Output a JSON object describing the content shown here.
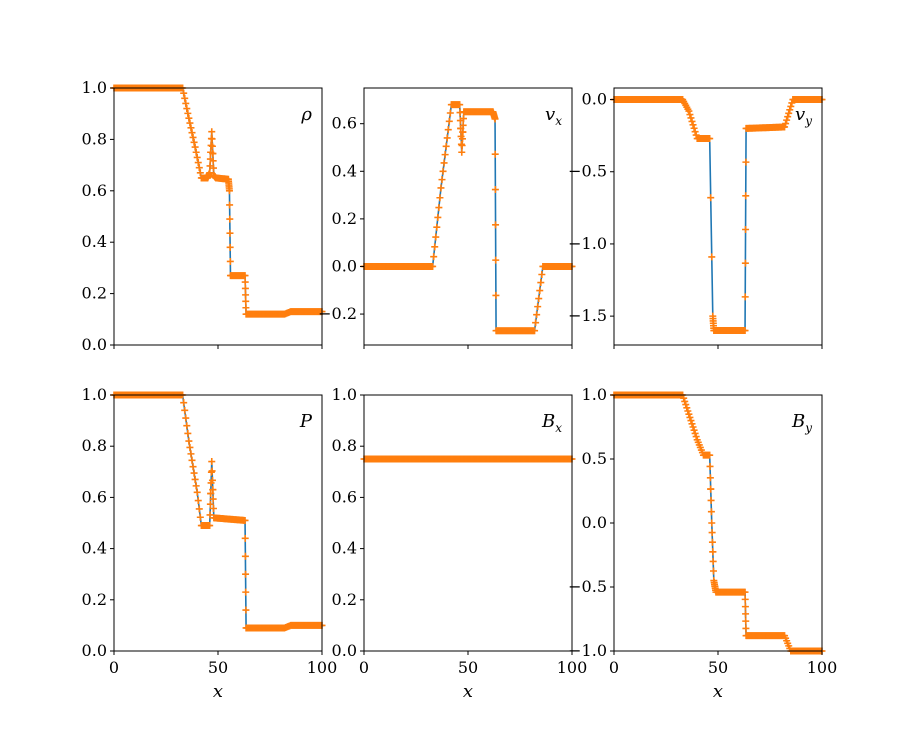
{
  "colors": {
    "line": "#1f77b4",
    "marker": "#ff7f0e",
    "axes": "#000000",
    "background": "#ffffff"
  },
  "chart_data": [
    {
      "type": "line",
      "panel_label": "ρ",
      "label_main": "ρ",
      "label_sub": "",
      "xlabel": "",
      "xlim": [
        0,
        100
      ],
      "ylim": [
        0.0,
        1.0
      ],
      "xticks": [
        0,
        50,
        100
      ],
      "yticks": [
        0.0,
        0.2,
        0.4,
        0.6,
        0.8,
        1.0
      ],
      "ytick_labels": [
        "0.0",
        "0.2",
        "0.4",
        "0.6",
        "0.8",
        "1.0"
      ],
      "show_xtick_labels": false,
      "series": [
        {
          "values": [
            [
              0,
              1.0
            ],
            [
              33,
              1.0
            ],
            [
              35,
              0.92
            ],
            [
              39,
              0.77
            ],
            [
              42,
              0.65
            ],
            [
              45,
              0.65
            ],
            [
              46,
              0.67
            ],
            [
              47,
              0.83
            ],
            [
              48,
              0.66
            ],
            [
              49,
              0.65
            ],
            [
              55,
              0.645
            ],
            [
              55.5,
              0.6
            ],
            [
              56,
              0.27
            ],
            [
              63,
              0.27
            ],
            [
              63.5,
              0.12
            ],
            [
              82,
              0.12
            ],
            [
              85,
              0.13
            ],
            [
              100,
              0.13
            ]
          ]
        }
      ]
    },
    {
      "type": "line",
      "panel_label": "v_x",
      "label_main": "v",
      "label_sub": "x",
      "xlabel": "",
      "xlim": [
        0,
        100
      ],
      "ylim": [
        -0.33,
        0.75
      ],
      "xticks": [
        0,
        50,
        100
      ],
      "yticks": [
        -0.2,
        0.0,
        0.2,
        0.4,
        0.6
      ],
      "ytick_labels": [
        "−0.2",
        "0.0",
        "0.2",
        "0.4",
        "0.6"
      ],
      "show_xtick_labels": false,
      "series": [
        {
          "values": [
            [
              0,
              0.0
            ],
            [
              33,
              0.0
            ],
            [
              37,
              0.33
            ],
            [
              42,
              0.68
            ],
            [
              46,
              0.68
            ],
            [
              47,
              0.48
            ],
            [
              48,
              0.65
            ],
            [
              62,
              0.65
            ],
            [
              63,
              0.62
            ],
            [
              63.5,
              -0.27
            ],
            [
              82,
              -0.27
            ],
            [
              86,
              0.0
            ],
            [
              100,
              0.0
            ]
          ]
        }
      ]
    },
    {
      "type": "line",
      "panel_label": "v_y",
      "label_main": "v",
      "label_sub": "y",
      "xlabel": "",
      "xlim": [
        0,
        100
      ],
      "ylim": [
        -1.7,
        0.08
      ],
      "xticks": [
        0,
        50,
        100
      ],
      "yticks": [
        -1.5,
        -1.0,
        -0.5,
        0.0
      ],
      "ytick_labels": [
        "−1.5",
        "−1.0",
        "−0.5",
        "0.0"
      ],
      "show_xtick_labels": false,
      "series": [
        {
          "values": [
            [
              0,
              0.0
            ],
            [
              33,
              0.0
            ],
            [
              36,
              -0.08
            ],
            [
              40,
              -0.27
            ],
            [
              46,
              -0.27
            ],
            [
              47.5,
              -1.5
            ],
            [
              48,
              -1.6
            ],
            [
              63,
              -1.6
            ],
            [
              63.5,
              -0.2
            ],
            [
              82,
              -0.19
            ],
            [
              86,
              0.0
            ],
            [
              100,
              0.0
            ]
          ]
        }
      ]
    },
    {
      "type": "line",
      "panel_label": "P",
      "label_main": "P",
      "label_sub": "",
      "xlabel": "x",
      "xlim": [
        0,
        100
      ],
      "ylim": [
        0.0,
        1.0
      ],
      "xticks": [
        0,
        50,
        100
      ],
      "yticks": [
        0.0,
        0.2,
        0.4,
        0.6,
        0.8,
        1.0
      ],
      "ytick_labels": [
        "0.0",
        "0.2",
        "0.4",
        "0.6",
        "0.8",
        "1.0"
      ],
      "show_xtick_labels": true,
      "xtick_labels": [
        "0",
        "50",
        "100"
      ],
      "series": [
        {
          "values": [
            [
              0,
              1.0
            ],
            [
              33,
              1.0
            ],
            [
              36,
              0.82
            ],
            [
              40,
              0.62
            ],
            [
              42,
              0.49
            ],
            [
              46,
              0.49
            ],
            [
              47,
              0.74
            ],
            [
              48,
              0.52
            ],
            [
              63,
              0.51
            ],
            [
              63.5,
              0.09
            ],
            [
              82,
              0.09
            ],
            [
              85,
              0.1
            ],
            [
              100,
              0.1
            ]
          ]
        }
      ]
    },
    {
      "type": "line",
      "panel_label": "B_x",
      "label_main": "B",
      "label_sub": "x",
      "xlabel": "x",
      "xlim": [
        0,
        100
      ],
      "ylim": [
        0.0,
        1.0
      ],
      "xticks": [
        0,
        50,
        100
      ],
      "yticks": [
        0.0,
        0.2,
        0.4,
        0.6,
        0.8,
        1.0
      ],
      "ytick_labels": [
        "0.0",
        "0.2",
        "0.4",
        "0.6",
        "0.8",
        "1.0"
      ],
      "show_xtick_labels": true,
      "xtick_labels": [
        "0",
        "50",
        "100"
      ],
      "series": [
        {
          "values": [
            [
              0,
              0.75
            ],
            [
              100,
              0.75
            ]
          ]
        }
      ]
    },
    {
      "type": "line",
      "panel_label": "B_y",
      "label_main": "B",
      "label_sub": "y",
      "xlabel": "x",
      "xlim": [
        0,
        100
      ],
      "ylim": [
        -1.0,
        1.0
      ],
      "xticks": [
        0,
        50,
        100
      ],
      "yticks": [
        -1.0,
        -0.5,
        0.0,
        0.5,
        1.0
      ],
      "ytick_labels": [
        "−1.0",
        "−0.5",
        "0.0",
        "0.5",
        "1.0"
      ],
      "show_xtick_labels": true,
      "xtick_labels": [
        "0",
        "50",
        "100"
      ],
      "series": [
        {
          "values": [
            [
              0,
              1.0
            ],
            [
              33,
              1.0
            ],
            [
              36,
              0.85
            ],
            [
              40,
              0.65
            ],
            [
              43,
              0.53
            ],
            [
              46,
              0.53
            ],
            [
              47,
              0.0
            ],
            [
              48,
              -0.45
            ],
            [
              49,
              -0.54
            ],
            [
              63,
              -0.54
            ],
            [
              63.5,
              -0.88
            ],
            [
              82,
              -0.88
            ],
            [
              85,
              -1.0
            ],
            [
              100,
              -1.0
            ]
          ]
        }
      ]
    }
  ]
}
